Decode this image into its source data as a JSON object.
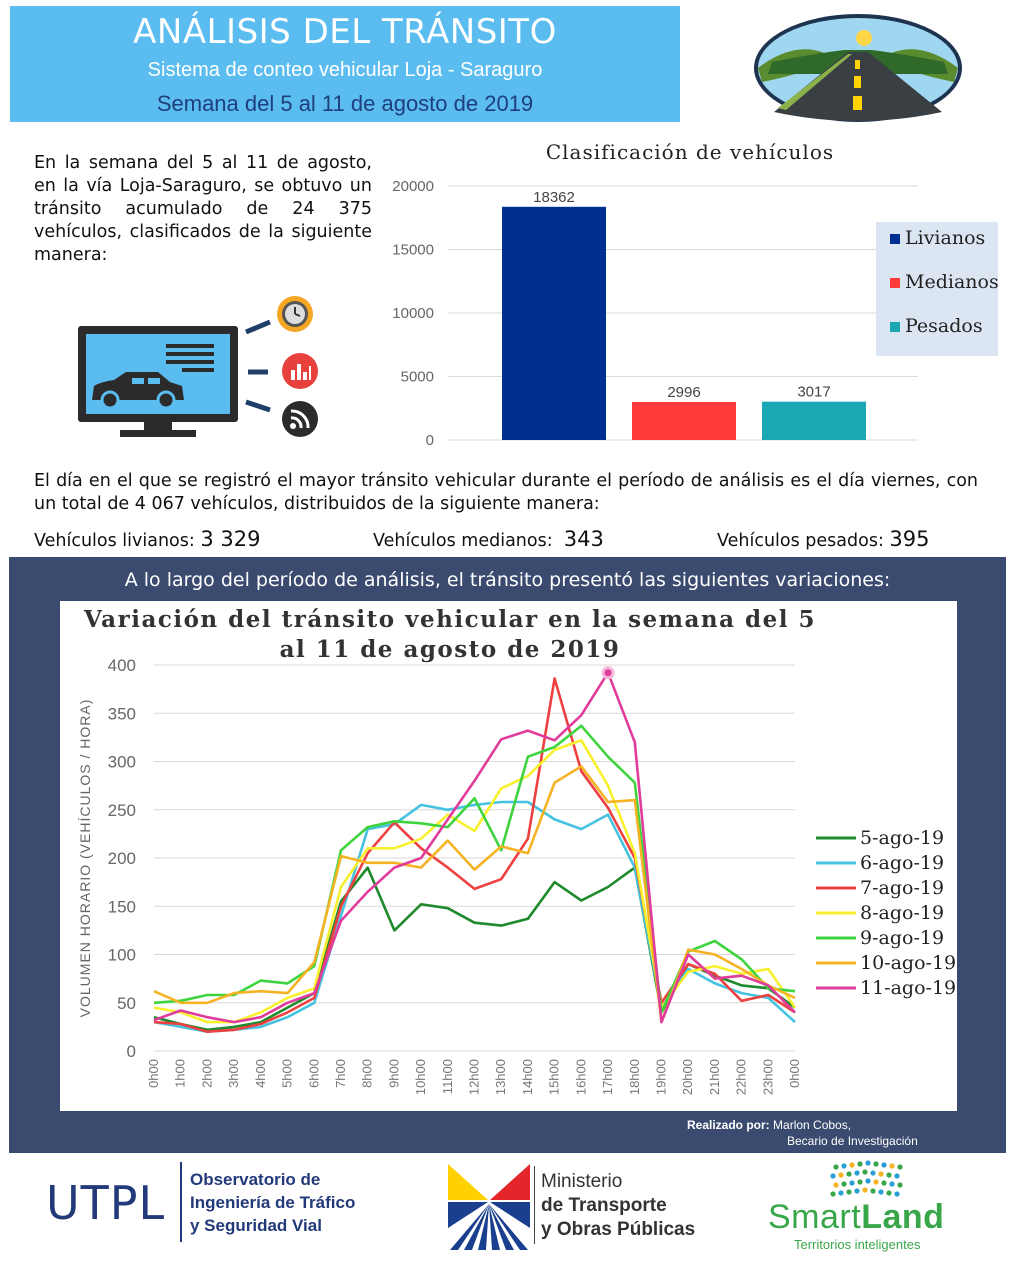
{
  "header": {
    "title": "ANÁLISIS DEL TRÁNSITO",
    "subtitle": "Sistema de conteo vehicular Loja - Saraguro",
    "week": "Semana del 5 al 11 de agosto de 2019"
  },
  "intro": {
    "text": "En la semana del 5 al 11 de agosto, en la vía Loja-Saraguro, se obtuvo un tránsito acumulado de 24 375 vehículos, clasificados de la siguiente manera:"
  },
  "day_summary": {
    "text": "El día en el que se registró el mayor tránsito vehicular durante el período de análisis es el día viernes, con un total de 4 067 vehículos, distribuidos de la siguiente manera:",
    "livianos_label": "Vehículos livianos:",
    "livianos_value": "3 329",
    "medianos_label": "Vehículos medianos:",
    "medianos_value": "343",
    "pesados_label": "Vehículos pesados:",
    "pesados_value": "395"
  },
  "panel": {
    "text": "A lo largo del período de análisis, el tránsito presentó las siguientes variaciones:",
    "credit_label": "Realizado por:",
    "credit_name": "Marlon Cobos,",
    "credit_role": "Becario de Investigación"
  },
  "footer": {
    "utpl": "UTPL",
    "obs_line1": "Observatorio de",
    "obs_line2": "Ingeniería de Tráfico",
    "obs_line3": "y Seguridad Vial",
    "mtop_line1": "Ministerio",
    "mtop_line2": "de Transporte",
    "mtop_line3": "y Obras Públicas",
    "smart_a": "Smart",
    "smart_b": "Land",
    "smart_sub": "Territorios inteligentes"
  },
  "chart_data": [
    {
      "type": "bar",
      "title": "Clasificación de vehículos",
      "categories": [
        "Livianos",
        "Medianos",
        "Pesados"
      ],
      "values": [
        18362,
        2996,
        3017
      ],
      "colors": [
        "#00308f",
        "#ff3b3b",
        "#1ba8b4"
      ],
      "ylim": [
        0,
        20000
      ],
      "yticks": [
        0,
        5000,
        10000,
        15000,
        20000
      ],
      "legend": "right",
      "grid": true
    },
    {
      "type": "line",
      "title_line1": "Variación del tránsito vehicular en la semana del 5",
      "title_line2": "al 11 de agosto de 2019",
      "ylabel": "VOLUMEN HORARIO (VEHÍCULOS / HORA)",
      "ylim": [
        0,
        400
      ],
      "yticks": [
        0,
        50,
        100,
        150,
        200,
        250,
        300,
        350,
        400
      ],
      "x": [
        "0h00",
        "1h00",
        "2h00",
        "3h00",
        "4h00",
        "5h00",
        "6h00",
        "7h00",
        "8h00",
        "9h00",
        "10h00",
        "11h00",
        "12h00",
        "13h00",
        "14h00",
        "15h00",
        "16h00",
        "17h00",
        "18h00",
        "19h00",
        "20h00",
        "21h00",
        "22h00",
        "23h00",
        "0h00"
      ],
      "legend": "right",
      "grid": true,
      "highlight": {
        "series": "11-ago-19",
        "x": "17h00",
        "value": 392
      },
      "series": [
        {
          "name": "5-ago-19",
          "color": "#1e8a2c",
          "values": [
            35,
            28,
            22,
            25,
            30,
            45,
            60,
            155,
            190,
            125,
            152,
            148,
            133,
            130,
            137,
            175,
            156,
            170,
            190,
            40,
            90,
            78,
            68,
            65,
            45
          ]
        },
        {
          "name": "6-ago-19",
          "color": "#45c3e0",
          "values": [
            30,
            25,
            20,
            22,
            25,
            35,
            50,
            140,
            230,
            235,
            255,
            250,
            255,
            258,
            258,
            240,
            230,
            245,
            190,
            45,
            85,
            70,
            60,
            55,
            30
          ]
        },
        {
          "name": "7-ago-19",
          "color": "#ee4040",
          "values": [
            30,
            28,
            20,
            22,
            28,
            40,
            55,
            150,
            205,
            237,
            210,
            190,
            168,
            178,
            220,
            386,
            290,
            252,
            200,
            50,
            90,
            80,
            52,
            58,
            40
          ]
        },
        {
          "name": "8-ago-19",
          "color": "#f8f02c",
          "values": [
            45,
            40,
            30,
            30,
            40,
            55,
            65,
            170,
            210,
            210,
            220,
            245,
            228,
            272,
            285,
            312,
            322,
            275,
            205,
            45,
            82,
            88,
            80,
            85,
            45
          ]
        },
        {
          "name": "9-ago-19",
          "color": "#3ed43e",
          "values": [
            50,
            52,
            58,
            58,
            73,
            70,
            88,
            208,
            232,
            238,
            236,
            232,
            262,
            208,
            305,
            315,
            337,
            305,
            278,
            40,
            103,
            114,
            95,
            65,
            62
          ]
        },
        {
          "name": "10-ago-19",
          "color": "#f5b324",
          "values": [
            62,
            50,
            50,
            60,
            62,
            60,
            92,
            202,
            195,
            195,
            190,
            218,
            188,
            212,
            205,
            278,
            295,
            258,
            260,
            30,
            105,
            100,
            85,
            68,
            55
          ]
        },
        {
          "name": "11-ago-19",
          "color": "#e03c9c",
          "values": [
            32,
            42,
            35,
            30,
            35,
            50,
            60,
            135,
            165,
            190,
            200,
            240,
            280,
            323,
            332,
            322,
            348,
            392,
            320,
            30,
            100,
            75,
            78,
            68,
            40
          ]
        }
      ]
    }
  ]
}
